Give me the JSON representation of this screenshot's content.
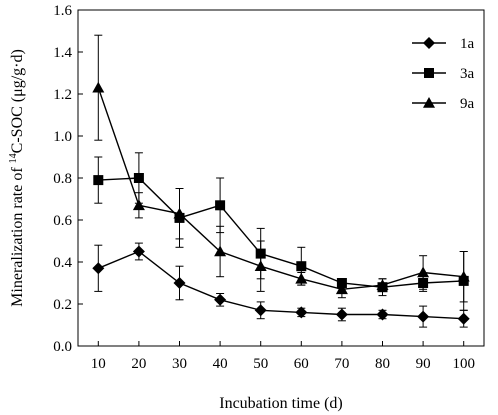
{
  "chart_data": {
    "type": "line",
    "xlabel": "Incubation time (d)",
    "ylabel": {
      "before_sup": "Mineralization rate of ",
      "sup": "14",
      "after_sup": "C-SOC (μg/g·d)"
    },
    "x": [
      10,
      20,
      30,
      40,
      50,
      60,
      70,
      80,
      90,
      100
    ],
    "xticks": [
      "10",
      "20",
      "30",
      "40",
      "50",
      "60",
      "70",
      "80",
      "90",
      "100"
    ],
    "ylim": [
      0,
      1.6
    ],
    "yticks": [
      "0.0",
      "0.2",
      "0.4",
      "0.6",
      "0.8",
      "1.0",
      "1.2",
      "1.4",
      "1.6"
    ],
    "legend_position": "top-right",
    "series": [
      {
        "name": "1a",
        "marker": "diamond",
        "values": [
          0.37,
          0.45,
          0.3,
          0.22,
          0.17,
          0.16,
          0.15,
          0.15,
          0.14,
          0.13
        ],
        "errors": [
          0.11,
          0.04,
          0.08,
          0.03,
          0.04,
          0.02,
          0.03,
          0.02,
          0.05,
          0.04
        ]
      },
      {
        "name": "3a",
        "marker": "square",
        "values": [
          0.79,
          0.8,
          0.61,
          0.67,
          0.44,
          0.38,
          0.3,
          0.28,
          0.3,
          0.31
        ],
        "errors": [
          0.11,
          0.12,
          0.14,
          0.13,
          0.12,
          0.09,
          0.02,
          0.04,
          0.04,
          0.14
        ]
      },
      {
        "name": "9a",
        "marker": "triangle",
        "values": [
          1.23,
          0.67,
          0.63,
          0.45,
          0.38,
          0.32,
          0.27,
          0.29,
          0.35,
          0.33
        ],
        "errors": [
          0.25,
          0.06,
          0.12,
          0.12,
          0.12,
          0.03,
          0.04,
          0.03,
          0.08,
          0.12
        ]
      }
    ]
  }
}
